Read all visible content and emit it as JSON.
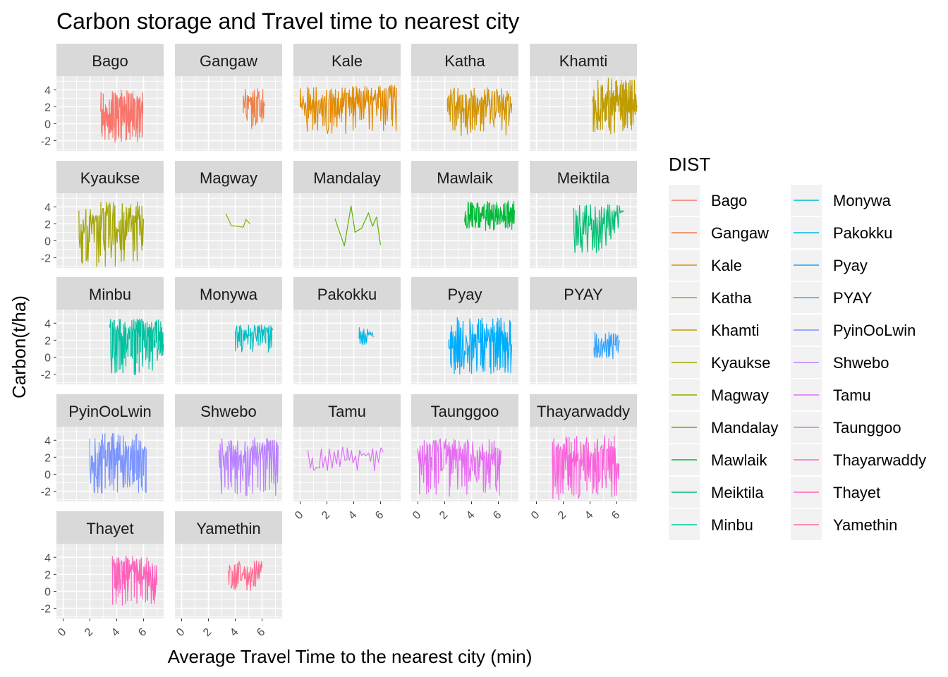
{
  "chart_data": {
    "type": "line",
    "title": "Carbon storage and Travel time to nearest city",
    "xlabel": "Average Travel Time to the nearest city (min)",
    "ylabel": "Carbon(t/ha)",
    "xlim": [
      -0.5,
      7.5
    ],
    "ylim": [
      -3.2,
      5.6
    ],
    "x_ticks": [
      0,
      2,
      4,
      6
    ],
    "y_ticks": [
      -2,
      0,
      2,
      4
    ],
    "grid": true,
    "legend": {
      "title": "DIST",
      "placement": "right",
      "columns": 2
    },
    "facets": [
      {
        "name": "Bago",
        "color": "#F8766D",
        "x_range": [
          2.8,
          6.0
        ],
        "y_range": [
          -2.2,
          4.0
        ],
        "density": 120,
        "trend": [
          [
            2.8,
            1.4
          ],
          [
            3.5,
            0.0
          ],
          [
            4.2,
            2.6
          ],
          [
            5.0,
            1.0
          ],
          [
            5.8,
            1.5
          ]
        ]
      },
      {
        "name": "Gangaw",
        "color": "#EF7F49",
        "x_range": [
          4.6,
          6.2
        ],
        "y_range": [
          -0.7,
          4.2
        ],
        "density": 40,
        "trend": [
          [
            4.6,
            2.0
          ],
          [
            5.2,
            3.0
          ],
          [
            5.8,
            1.8
          ],
          [
            6.2,
            2.1
          ]
        ]
      },
      {
        "name": "Kale",
        "color": "#E18A00",
        "x_range": [
          0.0,
          7.2
        ],
        "y_range": [
          -1.3,
          4.6
        ],
        "density": 130,
        "trend": [
          [
            0.0,
            2.0
          ],
          [
            2.5,
            2.8
          ],
          [
            3.8,
            3.1
          ],
          [
            5.0,
            3.0
          ],
          [
            6.0,
            3.2
          ],
          [
            7.2,
            4.2
          ]
        ]
      },
      {
        "name": "Katha",
        "color": "#D29300",
        "x_range": [
          2.2,
          7.0
        ],
        "y_range": [
          -1.5,
          4.3
        ],
        "density": 100,
        "trend": [
          [
            2.2,
            2.1
          ],
          [
            3.5,
            1.7
          ],
          [
            5.0,
            2.3
          ],
          [
            6.2,
            2.6
          ],
          [
            7.0,
            2.4
          ]
        ]
      },
      {
        "name": "Khamti",
        "color": "#BF9C00",
        "x_range": [
          4.2,
          7.5
        ],
        "y_range": [
          -1.2,
          5.4
        ],
        "density": 110,
        "trend": [
          [
            4.2,
            2.6
          ],
          [
            4.6,
            0.5
          ],
          [
            5.5,
            2.8
          ],
          [
            6.5,
            3.0
          ],
          [
            7.5,
            2.2
          ]
        ]
      },
      {
        "name": "Kyaukse",
        "color": "#A3A500",
        "x_range": [
          1.2,
          6.0
        ],
        "y_range": [
          -3.2,
          4.6
        ],
        "density": 90,
        "trend": [
          [
            1.2,
            0.2
          ],
          [
            2.5,
            2.8
          ],
          [
            3.2,
            3.3
          ],
          [
            4.2,
            1.0
          ],
          [
            5.0,
            3.0
          ],
          [
            6.0,
            2.6
          ]
        ]
      },
      {
        "name": "Magway",
        "color": "#85AD00",
        "x_range": [
          3.3,
          5.1
        ],
        "y_range": [
          1.4,
          3.2
        ],
        "density": 0,
        "trend": [
          [
            3.3,
            3.2
          ],
          [
            3.7,
            1.8
          ],
          [
            4.6,
            1.6
          ],
          [
            4.8,
            2.5
          ],
          [
            5.1,
            2.0
          ]
        ]
      },
      {
        "name": "Mandalay",
        "color": "#5BB300",
        "x_range": [
          2.6,
          6.0
        ],
        "y_range": [
          -0.6,
          4.1
        ],
        "density": 0,
        "trend": [
          [
            2.6,
            2.6
          ],
          [
            3.3,
            -0.6
          ],
          [
            3.8,
            4.1
          ],
          [
            4.1,
            1.0
          ],
          [
            4.6,
            1.5
          ],
          [
            5.1,
            3.3
          ],
          [
            5.4,
            1.7
          ],
          [
            5.7,
            2.8
          ],
          [
            6.0,
            -0.5
          ]
        ]
      },
      {
        "name": "Mawlaik",
        "color": "#00BA38",
        "x_range": [
          3.5,
          7.2
        ],
        "y_range": [
          1.2,
          4.7
        ],
        "density": 110,
        "trend": [
          [
            3.5,
            2.2
          ],
          [
            4.5,
            3.2
          ],
          [
            5.5,
            3.3
          ],
          [
            6.5,
            3.0
          ],
          [
            7.2,
            3.6
          ]
        ]
      },
      {
        "name": "Meiktila",
        "color": "#00BF74",
        "x_range": [
          2.8,
          6.5
        ],
        "y_range": [
          -1.4,
          4.3
        ],
        "density": 55,
        "trend": [
          [
            2.8,
            1.2
          ],
          [
            4.0,
            2.0
          ],
          [
            5.0,
            2.6
          ],
          [
            6.0,
            3.5
          ],
          [
            6.5,
            3.4
          ]
        ]
      },
      {
        "name": "Minbu",
        "color": "#00C19F",
        "x_range": [
          3.5,
          7.5
        ],
        "y_range": [
          -2.1,
          4.5
        ],
        "density": 120,
        "trend": [
          [
            3.5,
            3.5
          ],
          [
            4.5,
            2.0
          ],
          [
            5.5,
            3.0
          ],
          [
            6.5,
            2.5
          ],
          [
            7.5,
            1.5
          ]
        ]
      },
      {
        "name": "Monywa",
        "color": "#00BFC4",
        "x_range": [
          4.0,
          6.8
        ],
        "y_range": [
          0.6,
          3.8
        ],
        "density": 55,
        "trend": [
          [
            4.0,
            3.0
          ],
          [
            5.0,
            2.6
          ],
          [
            6.0,
            3.0
          ],
          [
            6.8,
            3.2
          ]
        ]
      },
      {
        "name": "Pakokku",
        "color": "#00B8E7",
        "x_range": [
          4.4,
          5.5
        ],
        "y_range": [
          1.3,
          3.5
        ],
        "density": 18,
        "trend": [
          [
            4.4,
            2.2
          ],
          [
            4.8,
            1.7
          ],
          [
            5.1,
            2.8
          ],
          [
            5.5,
            2.4
          ]
        ]
      },
      {
        "name": "Pyay",
        "color": "#00ACFC",
        "x_range": [
          2.3,
          7.0
        ],
        "y_range": [
          -2.0,
          4.7
        ],
        "density": 120,
        "trend": [
          [
            2.3,
            1.2
          ],
          [
            3.5,
            0.5
          ],
          [
            4.5,
            2.2
          ],
          [
            5.5,
            2.8
          ],
          [
            7.0,
            1.5
          ]
        ]
      },
      {
        "name": "PYAY",
        "color": "#35A2FF",
        "x_range": [
          4.3,
          6.2
        ],
        "y_range": [
          -0.2,
          3.0
        ],
        "density": 40,
        "trend": [
          [
            4.3,
            0.5
          ],
          [
            5.0,
            1.2
          ],
          [
            5.6,
            2.4
          ],
          [
            6.2,
            2.0
          ]
        ]
      },
      {
        "name": "PyinOoLwin",
        "color": "#7B95FF",
        "x_range": [
          2.0,
          6.2
        ],
        "y_range": [
          -2.3,
          4.8
        ],
        "density": 130,
        "trend": [
          [
            2.0,
            0.8
          ],
          [
            2.8,
            2.0
          ],
          [
            3.8,
            2.6
          ],
          [
            5.0,
            1.5
          ],
          [
            6.2,
            3.0
          ]
        ]
      },
      {
        "name": "Shwebo",
        "color": "#B983FF",
        "x_range": [
          2.8,
          7.2
        ],
        "y_range": [
          -3.0,
          4.3
        ],
        "density": 100,
        "trend": [
          [
            2.8,
            2.0
          ],
          [
            4.0,
            1.2
          ],
          [
            5.5,
            3.0
          ],
          [
            7.2,
            3.4
          ]
        ]
      },
      {
        "name": "Tamu",
        "color": "#DC71FA",
        "x_range": [
          0.6,
          6.2
        ],
        "y_range": [
          0.4,
          3.4
        ],
        "density": 35,
        "trend": [
          [
            0.6,
            2.5
          ],
          [
            1.0,
            0.5
          ],
          [
            3.5,
            1.8
          ],
          [
            4.8,
            2.4
          ],
          [
            6.2,
            2.6
          ]
        ]
      },
      {
        "name": "Taunggoo",
        "color": "#E76BF3",
        "x_range": [
          0.0,
          6.2
        ],
        "y_range": [
          -2.6,
          4.2
        ],
        "density": 130,
        "trend": [
          [
            0.0,
            2.6
          ],
          [
            1.0,
            2.0
          ],
          [
            2.0,
            3.0
          ],
          [
            2.6,
            2.8
          ],
          [
            3.5,
            2.0
          ],
          [
            5.0,
            1.8
          ],
          [
            6.2,
            2.8
          ]
        ]
      },
      {
        "name": "Thayarwaddy",
        "color": "#FA62DB",
        "x_range": [
          1.2,
          6.2
        ],
        "y_range": [
          -3.0,
          4.6
        ],
        "density": 130,
        "trend": [
          [
            1.2,
            1.0
          ],
          [
            2.0,
            2.0
          ],
          [
            3.5,
            1.5
          ],
          [
            5.0,
            2.2
          ],
          [
            6.2,
            1.0
          ]
        ]
      },
      {
        "name": "Thayet",
        "color": "#FF62BC",
        "x_range": [
          3.7,
          7.0
        ],
        "y_range": [
          -1.7,
          4.2
        ],
        "density": 110,
        "trend": [
          [
            3.7,
            2.8
          ],
          [
            4.5,
            2.8
          ],
          [
            5.2,
            3.2
          ],
          [
            6.0,
            1.5
          ],
          [
            7.0,
            0.8
          ]
        ]
      },
      {
        "name": "Yamethin",
        "color": "#FF6C91",
        "x_range": [
          3.5,
          6.0
        ],
        "y_range": [
          0.0,
          3.8
        ],
        "density": 45,
        "trend": [
          [
            3.5,
            2.2
          ],
          [
            4.0,
            0.3
          ],
          [
            4.6,
            2.0
          ],
          [
            5.2,
            1.6
          ],
          [
            6.0,
            2.8
          ]
        ]
      }
    ]
  }
}
